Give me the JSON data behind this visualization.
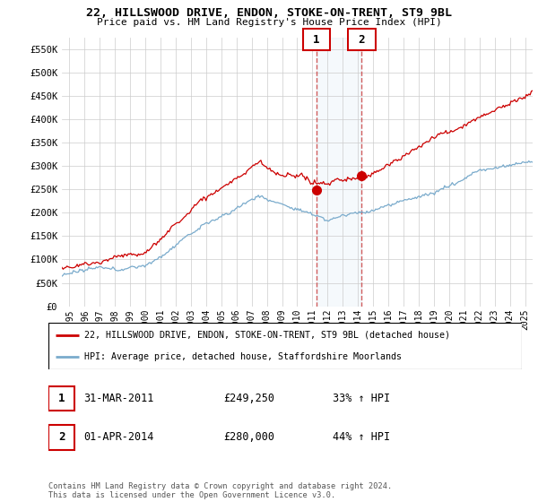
{
  "title": "22, HILLSWOOD DRIVE, ENDON, STOKE-ON-TRENT, ST9 9BL",
  "subtitle": "Price paid vs. HM Land Registry's House Price Index (HPI)",
  "ylim": [
    0,
    575000
  ],
  "yticks": [
    0,
    50000,
    100000,
    150000,
    200000,
    250000,
    300000,
    350000,
    400000,
    450000,
    500000,
    550000
  ],
  "ytick_labels": [
    "£0",
    "£50K",
    "£100K",
    "£150K",
    "£200K",
    "£250K",
    "£300K",
    "£350K",
    "£400K",
    "£450K",
    "£500K",
    "£550K"
  ],
  "line1_color": "#cc0000",
  "line2_color": "#7aabcc",
  "highlight_color": "#ddeeff",
  "sale1_label": "1",
  "sale1_date": "31-MAR-2011",
  "sale1_price": "£249,250",
  "sale1_hpi": "33% ↑ HPI",
  "sale2_label": "2",
  "sale2_date": "01-APR-2014",
  "sale2_price": "£280,000",
  "sale2_hpi": "44% ↑ HPI",
  "legend_line1": "22, HILLSWOOD DRIVE, ENDON, STOKE-ON-TRENT, ST9 9BL (detached house)",
  "legend_line2": "HPI: Average price, detached house, Staffordshire Moorlands",
  "footer": "Contains HM Land Registry data © Crown copyright and database right 2024.\nThis data is licensed under the Open Government Licence v3.0.",
  "sale1_x": 2011.25,
  "sale2_x": 2014.25,
  "sale1_price_val": 249250,
  "sale2_price_val": 280000,
  "highlight_x1": 2011.25,
  "highlight_x2": 2014.25,
  "xlim": [
    1994.5,
    2025.5
  ]
}
